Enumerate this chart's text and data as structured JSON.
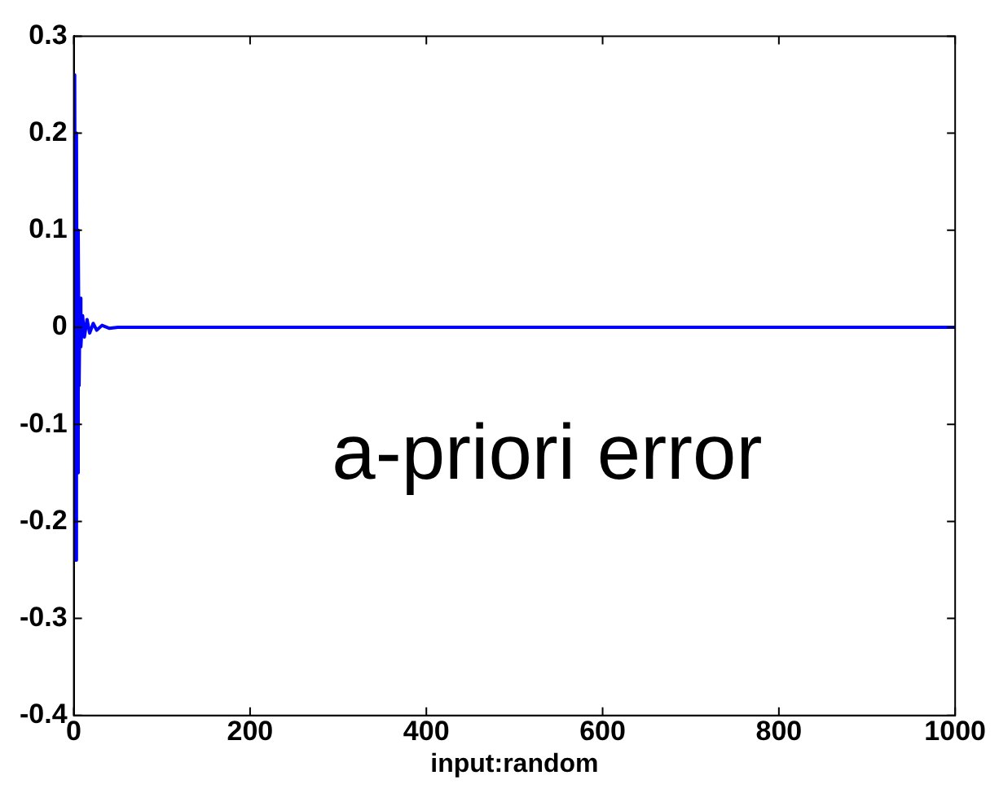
{
  "chart_data": {
    "type": "line",
    "xlabel": "input:random",
    "annotations": [
      "a-priori error"
    ],
    "series": [
      {
        "color": "#0000ff",
        "x": [
          0,
          1,
          2,
          3,
          4,
          5,
          6,
          7,
          8,
          10,
          12,
          15,
          18,
          22,
          26,
          32,
          40,
          50,
          1000
        ],
        "values": [
          0,
          0.26,
          -0.24,
          0.2,
          -0.15,
          0.1,
          -0.06,
          0.03,
          -0.02,
          0.012,
          -0.01,
          0.008,
          -0.006,
          0.004,
          -0.003,
          0.002,
          -0.001,
          0,
          0
        ]
      }
    ],
    "xlim": [
      0,
      1000
    ],
    "xticks": [
      0,
      200,
      400,
      600,
      800,
      1000
    ],
    "ylim": [
      -0.4,
      0.3
    ],
    "yticks": [
      -0.4,
      -0.3,
      -0.2,
      -0.1,
      0,
      0.1,
      0.2,
      0.3
    ],
    "grid": false,
    "legend": false,
    "marker": "none",
    "line_style": "solid"
  }
}
